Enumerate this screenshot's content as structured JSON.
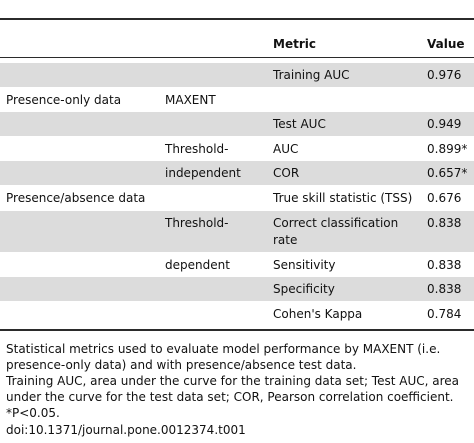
{
  "table": {
    "header": {
      "metric": "Metric",
      "value": "Value"
    },
    "col_a": {
      "presence_only": "Presence-only data",
      "presence_absence": "Presence/absence data"
    },
    "col_b": {
      "maxent": "MAXENT",
      "threshold_1": "Threshold-",
      "independent": "independent",
      "threshold_2": "Threshold-",
      "dependent": "dependent"
    },
    "rows": [
      {
        "metric": "Training AUC",
        "value": "0.976"
      },
      {
        "metric": "Test AUC",
        "value": "0.949"
      },
      {
        "metric": "AUC",
        "value": "0.899*"
      },
      {
        "metric": "COR",
        "value": "0.657*"
      },
      {
        "metric": "True skill statistic (TSS)",
        "value": "0.676"
      },
      {
        "metric": "Correct classification",
        "metric_line2": "rate",
        "value": "0.838"
      },
      {
        "metric": "Sensitivity",
        "value": "0.838"
      },
      {
        "metric": "Specificity",
        "value": "0.838"
      },
      {
        "metric": "Cohen's Kappa",
        "value": "0.784"
      }
    ]
  },
  "caption": {
    "line1": "Statistical metrics used to evaluate model performance by MAXENT (i.e. presence-only data) and with presence/absence test data.",
    "line2": "Training AUC, area under the curve for the training data set; Test AUC, area under the curve for the test data set; COR, Pearson correlation coefficient.",
    "line3": "*P<0.05."
  },
  "doi": "doi:10.1371/journal.pone.0012374.t001"
}
